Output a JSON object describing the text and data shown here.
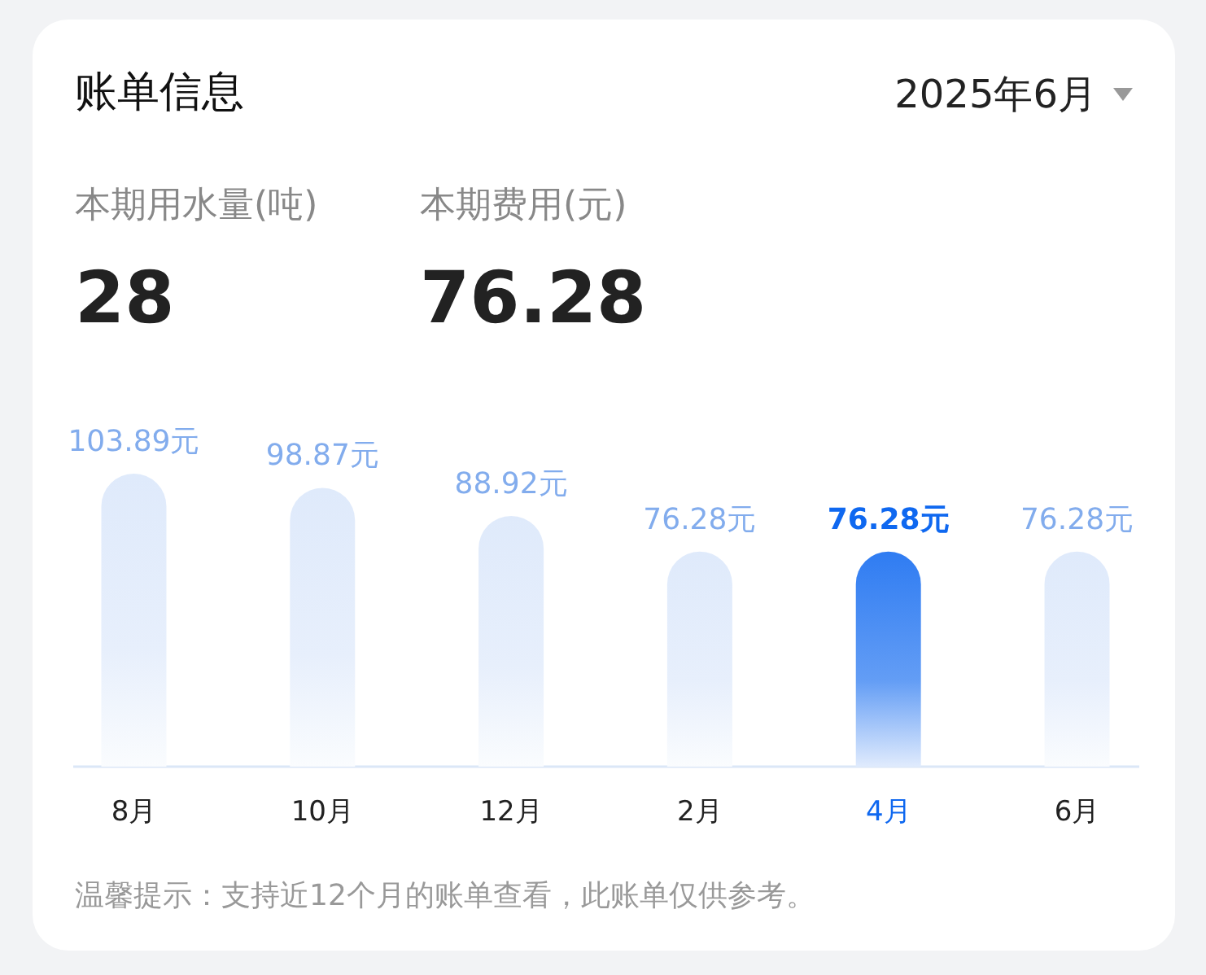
{
  "chart_data": {
    "type": "bar",
    "title": "账单信息",
    "categories": [
      "8月",
      "10月",
      "12月",
      "2月",
      "4月",
      "6月"
    ],
    "values": [
      103.89,
      98.87,
      88.92,
      76.28,
      76.28,
      76.28
    ],
    "value_labels": [
      "103.89元",
      "98.87元",
      "88.92元",
      "76.28元",
      "76.28元",
      "76.28元"
    ],
    "colors": [
      "#dfeafb",
      "#dfeafb",
      "#dfeafb",
      "#dfeafb",
      "#2f7cf2",
      "#dfeafb"
    ],
    "annotations": [
      "2025年6月",
      "本期用水量(吨)",
      "28",
      "本期费用(元)",
      "76.28",
      "温馨提示：支持近12个月的账单查看，此账单仅供参考。"
    ]
  }
}
